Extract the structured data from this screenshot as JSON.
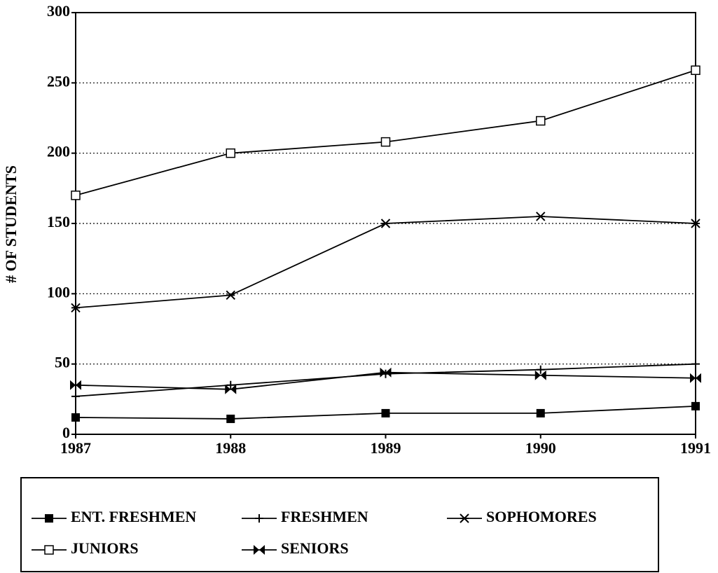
{
  "chart_data": {
    "type": "line",
    "y_label": "# OF STUDENTS",
    "x": [
      1987,
      1988,
      1989,
      1990,
      1991
    ],
    "xlim": [
      1987,
      1991
    ],
    "xticks": [
      1987,
      1988,
      1989,
      1990,
      1991
    ],
    "ylim": [
      0,
      300
    ],
    "yticks": [
      0,
      50,
      100,
      150,
      200,
      250,
      300
    ],
    "grid": true,
    "legend": "bottom",
    "series": [
      {
        "name": "ENT. FRESHMEN",
        "color": "#000000",
        "marker": "filled-square",
        "values": [
          12,
          11,
          15,
          15,
          20
        ]
      },
      {
        "name": "FRESHMEN",
        "color": "#000000",
        "marker": "plus",
        "values": [
          27,
          35,
          43,
          46,
          50
        ]
      },
      {
        "name": "SOPHOMORES",
        "color": "#000000",
        "marker": "asterisk",
        "values": [
          90,
          99,
          150,
          155,
          150
        ]
      },
      {
        "name": "JUNIORS",
        "color": "#000000",
        "marker": "open-square",
        "values": [
          170,
          200,
          208,
          223,
          259
        ]
      },
      {
        "name": "SENIORS",
        "color": "#000000",
        "marker": "bowtie",
        "values": [
          35,
          32,
          44,
          42,
          40
        ]
      }
    ]
  }
}
